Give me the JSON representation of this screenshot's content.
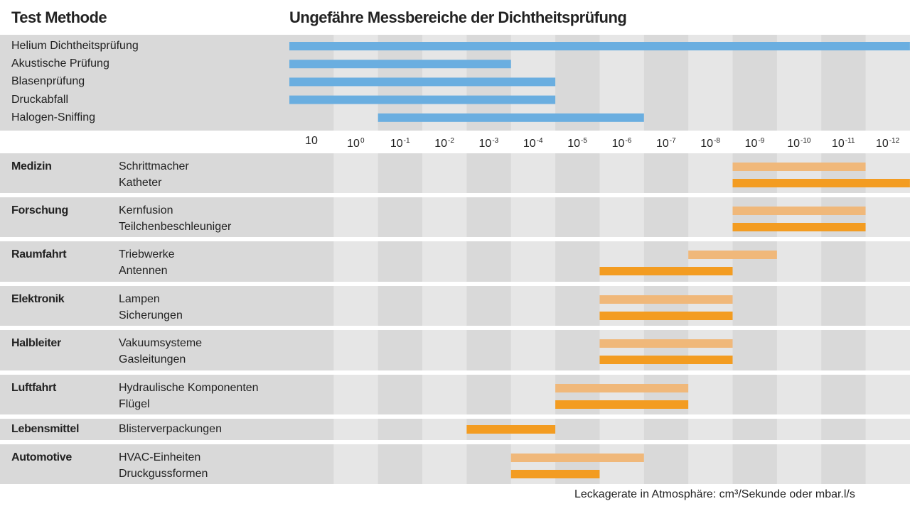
{
  "header": {
    "left_title": "Test Methode",
    "main_title": "Ungefähre Messbereiche der Dichtheitsprüfung"
  },
  "footer": "Leckagerate in Atmosphäre: cm³/Sekunde oder mbar.l/s",
  "colors": {
    "method_bar": "#6aaee0",
    "app_light": "#f0b87a",
    "app_dark": "#f39c21",
    "band_light": "#e6e6e6",
    "band_dark": "#d9d9d9"
  },
  "chart_data": {
    "type": "range-bar",
    "x_ticks": [
      {
        "base": "10",
        "exp": ""
      },
      {
        "base": "10",
        "exp": "0"
      },
      {
        "base": "10",
        "exp": "-1"
      },
      {
        "base": "10",
        "exp": "-2"
      },
      {
        "base": "10",
        "exp": "-3"
      },
      {
        "base": "10",
        "exp": "-4"
      },
      {
        "base": "10",
        "exp": "-5"
      },
      {
        "base": "10",
        "exp": "-6"
      },
      {
        "base": "10",
        "exp": "-7"
      },
      {
        "base": "10",
        "exp": "-8"
      },
      {
        "base": "10",
        "exp": "-9"
      },
      {
        "base": "10",
        "exp": "-10"
      },
      {
        "base": "10",
        "exp": "-11"
      },
      {
        "base": "10",
        "exp": "-12"
      }
    ],
    "methods": [
      {
        "name": "Helium Dichtheitsprüfung",
        "from": 0,
        "to": 14
      },
      {
        "name": "Akustische Prüfung",
        "from": 0,
        "to": 5
      },
      {
        "name": "Blasenprüfung",
        "from": 0,
        "to": 6
      },
      {
        "name": "Druckabfall",
        "from": 0,
        "to": 6
      },
      {
        "name": "Halogen-Sniffing",
        "from": 2,
        "to": 8
      }
    ],
    "groups": [
      {
        "category": "Medizin",
        "items": [
          {
            "name": "Schrittmacher",
            "from": 10,
            "to": 13,
            "shade": "light"
          },
          {
            "name": "Katheter",
            "from": 10,
            "to": 14,
            "shade": "dark"
          }
        ]
      },
      {
        "category": "Forschung",
        "items": [
          {
            "name": "Kernfusion",
            "from": 10,
            "to": 13,
            "shade": "light"
          },
          {
            "name": "Teilchenbeschleuniger",
            "from": 10,
            "to": 13,
            "shade": "dark"
          }
        ]
      },
      {
        "category": "Raumfahrt",
        "items": [
          {
            "name": "Triebwerke",
            "from": 9,
            "to": 11,
            "shade": "light"
          },
          {
            "name": "Antennen",
            "from": 7,
            "to": 10,
            "shade": "dark"
          }
        ]
      },
      {
        "category": "Elektronik",
        "items": [
          {
            "name": "Lampen",
            "from": 7,
            "to": 10,
            "shade": "light"
          },
          {
            "name": "Sicherungen",
            "from": 7,
            "to": 10,
            "shade": "dark"
          }
        ]
      },
      {
        "category": "Halbleiter",
        "items": [
          {
            "name": "Vakuumsysteme",
            "from": 7,
            "to": 10,
            "shade": "light"
          },
          {
            "name": "Gasleitungen",
            "from": 7,
            "to": 10,
            "shade": "dark"
          }
        ]
      },
      {
        "category": "Luftfahrt",
        "items": [
          {
            "name": "Hydraulische Komponenten",
            "from": 6,
            "to": 9,
            "shade": "light"
          },
          {
            "name": "Flügel",
            "from": 6,
            "to": 9,
            "shade": "dark"
          }
        ]
      },
      {
        "category": "Lebensmittel",
        "items": [
          {
            "name": "Blisterverpackungen",
            "from": 4,
            "to": 6,
            "shade": "dark"
          }
        ]
      },
      {
        "category": "Automotive",
        "items": [
          {
            "name": "HVAC-Einheiten",
            "from": 5,
            "to": 8,
            "shade": "light"
          },
          {
            "name": "Druckgussformen",
            "from": 5,
            "to": 7,
            "shade": "dark"
          }
        ]
      }
    ]
  }
}
